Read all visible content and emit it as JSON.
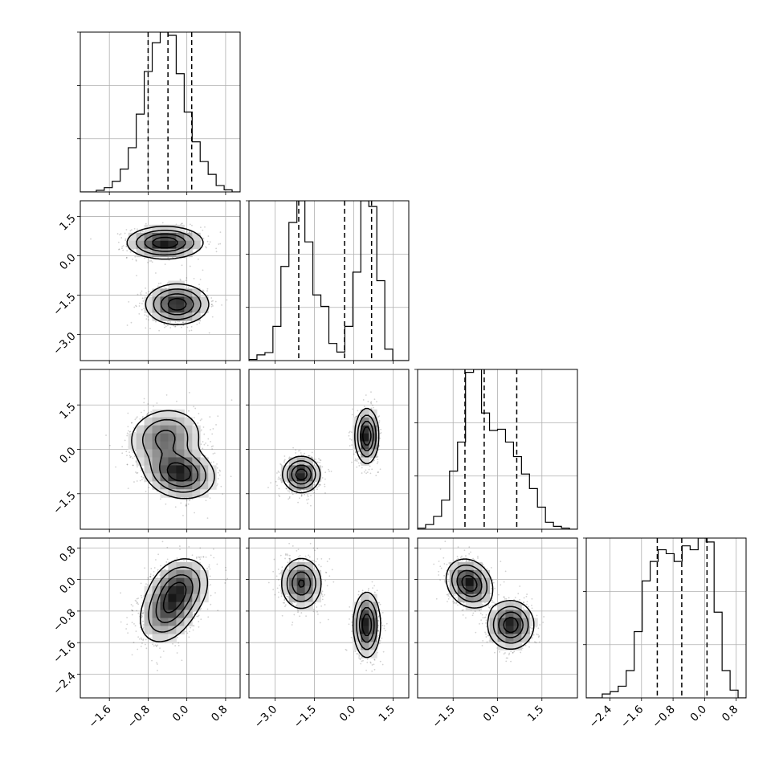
{
  "chart_data": {
    "type": "corner",
    "dim": 4,
    "grid": true,
    "quantiles": [
      0.16,
      0.5,
      0.84
    ],
    "axes": [
      {
        "range": [
          -2.2,
          1.1
        ],
        "ticks": [
          "-1.6",
          "-0.8",
          "0.0",
          "0.8"
        ]
      },
      {
        "range": [
          -4.0,
          2.1
        ],
        "ticks": [
          "-3.0",
          "-1.5",
          "0.0",
          "1.5"
        ]
      },
      {
        "range": [
          -2.7,
          2.7
        ],
        "ticks": [
          "-1.5",
          "0.0",
          "1.5"
        ]
      },
      {
        "range": [
          -3.0,
          1.05
        ],
        "ticks": [
          "-2.4",
          "-1.6",
          "-0.8",
          "0.0",
          "0.8"
        ]
      }
    ],
    "histograms": [
      {
        "quantile_values": [
          -0.8,
          -0.39,
          0.1
        ],
        "bin_edges": [
          -2.2,
          -2.035,
          -1.87,
          -1.705,
          -1.54,
          -1.375,
          -1.21,
          -1.045,
          -0.88,
          -0.715,
          -0.55,
          -0.385,
          -0.22,
          -0.055,
          0.11,
          0.275,
          0.44,
          0.605,
          0.77,
          0.935,
          1.1
        ],
        "counts": [
          0,
          0,
          3,
          8,
          20,
          43,
          83,
          146,
          226,
          280,
          300,
          294,
          222,
          150,
          94,
          57,
          33,
          12,
          4,
          0
        ]
      },
      {
        "quantile_values": [
          -2.1,
          -0.35,
          0.68
        ],
        "bin_edges": [
          -4.0,
          -3.695,
          -3.39,
          -3.085,
          -2.78,
          -2.475,
          -2.17,
          -1.865,
          -1.56,
          -1.255,
          -0.95,
          -0.645,
          -0.34,
          -0.035,
          0.27,
          0.575,
          0.88,
          1.185,
          1.49,
          1.795,
          2.1
        ],
        "counts": [
          2,
          10,
          14,
          60,
          165,
          242,
          280,
          208,
          115,
          95,
          30,
          15,
          60,
          155,
          280,
          270,
          140,
          20,
          0,
          0
        ]
      },
      {
        "quantile_values": [
          -1.1,
          -0.45,
          0.65
        ],
        "bin_edges": [
          -2.7,
          -2.43,
          -2.16,
          -1.89,
          -1.62,
          -1.35,
          -1.08,
          -0.81,
          -0.54,
          -0.27,
          0.0,
          0.27,
          0.54,
          0.81,
          1.08,
          1.35,
          1.62,
          1.89,
          2.16,
          2.43,
          2.7
        ],
        "counts": [
          2,
          8,
          22,
          50,
          100,
          150,
          270,
          275,
          200,
          170,
          172,
          150,
          125,
          95,
          70,
          38,
          12,
          5,
          2,
          0
        ]
      },
      {
        "quantile_values": [
          -1.2,
          -0.58,
          0.06
        ],
        "bin_edges": [
          -3.0,
          -2.7975,
          -2.595,
          -2.3925,
          -2.19,
          -1.9875,
          -1.785,
          -1.5825,
          -1.38,
          -1.1775,
          -0.975,
          -0.7725,
          -0.57,
          -0.3675,
          -0.165,
          0.0375,
          0.24,
          0.4425,
          0.645,
          0.8475,
          1.05
        ],
        "counts": [
          0,
          0,
          5,
          8,
          15,
          35,
          85,
          150,
          175,
          190,
          185,
          175,
          195,
          190,
          205,
          200,
          110,
          35,
          10,
          0
        ]
      }
    ],
    "density_blobs": [
      {
        "x_dim": 0,
        "y_dim": 1,
        "components": [
          {
            "weight": 0.5,
            "mean": [
              -0.45,
              0.5
            ],
            "sd": [
              0.38,
              0.3
            ],
            "rho": 0.0
          },
          {
            "weight": 0.5,
            "mean": [
              -0.2,
              -1.85
            ],
            "sd": [
              0.32,
              0.38
            ],
            "rho": 0.0
          }
        ]
      },
      {
        "x_dim": 0,
        "y_dim": 2,
        "components": [
          {
            "weight": 0.45,
            "mean": [
              -0.45,
              0.4
            ],
            "sd": [
              0.38,
              0.5
            ],
            "rho": 0.1
          },
          {
            "weight": 0.55,
            "mean": [
              -0.15,
              -0.8
            ],
            "sd": [
              0.35,
              0.42
            ],
            "rho": -0.15
          }
        ]
      },
      {
        "x_dim": 1,
        "y_dim": 2,
        "components": [
          {
            "weight": 0.5,
            "mean": [
              -2.0,
              -0.85
            ],
            "sd": [
              0.35,
              0.3
            ],
            "rho": 0.0
          },
          {
            "weight": 0.5,
            "mean": [
              0.5,
              0.45
            ],
            "sd": [
              0.22,
              0.45
            ],
            "rho": 0.0
          }
        ]
      },
      {
        "x_dim": 0,
        "y_dim": 3,
        "components": [
          {
            "weight": 0.5,
            "mean": [
              -0.4,
              -0.8
            ],
            "sd": [
              0.3,
              0.42
            ],
            "rho": 0.3
          },
          {
            "weight": 0.5,
            "mean": [
              -0.15,
              -0.2
            ],
            "sd": [
              0.3,
              0.38
            ],
            "rho": 0.2
          }
        ]
      },
      {
        "x_dim": 1,
        "y_dim": 3,
        "components": [
          {
            "weight": 0.5,
            "mean": [
              -2.0,
              -0.1
            ],
            "sd": [
              0.38,
              0.32
            ],
            "rho": 0.0
          },
          {
            "weight": 0.5,
            "mean": [
              0.5,
              -1.15
            ],
            "sd": [
              0.25,
              0.4
            ],
            "rho": 0.0
          }
        ]
      },
      {
        "x_dim": 2,
        "y_dim": 3,
        "components": [
          {
            "weight": 0.5,
            "mean": [
              -0.95,
              -0.1
            ],
            "sd": [
              0.38,
              0.3
            ],
            "rho": -0.2
          },
          {
            "weight": 0.5,
            "mean": [
              0.45,
              -1.15
            ],
            "sd": [
              0.38,
              0.3
            ],
            "rho": 0.0
          }
        ]
      }
    ]
  }
}
